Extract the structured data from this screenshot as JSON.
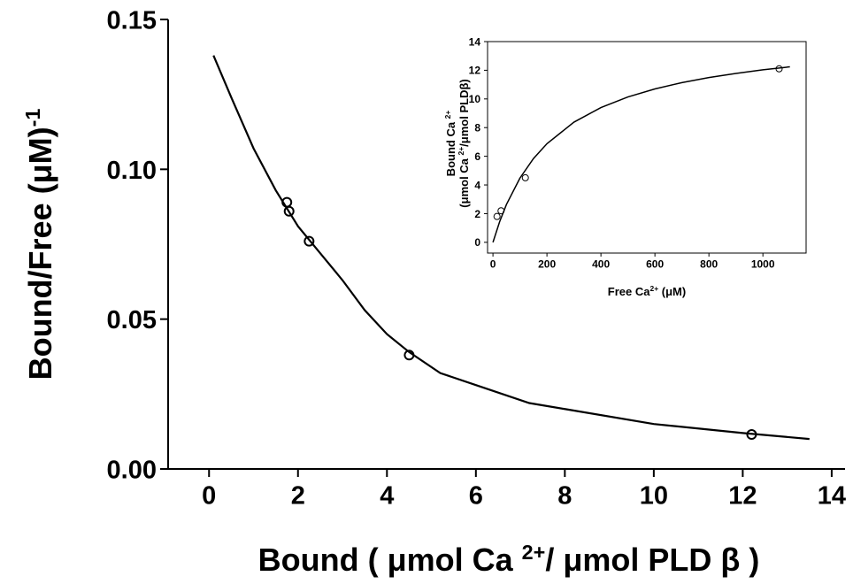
{
  "chart_data": [
    {
      "type": "line",
      "x_label": [
        "Bound ( μmol Ca ",
        "2+",
        "/ μmol PLD β )"
      ],
      "y_label": [
        "Bound/Free (μM)",
        "-1"
      ],
      "xlim": [
        -0.92,
        14.3
      ],
      "ylim": [
        0,
        0.15
      ],
      "xticks": [
        0,
        2,
        4,
        6,
        8,
        10,
        12,
        14
      ],
      "yticks": [
        {
          "value": 0,
          "label": "0.00"
        },
        0.05,
        {
          "value": 0.1,
          "label": "0.10"
        },
        0.15
      ],
      "series": [
        {
          "style": "line",
          "color": "#000000",
          "x": [
            0.1,
            0.5,
            1,
            1.5,
            2,
            2.5,
            3,
            3.5,
            4,
            4.5,
            5.2,
            6,
            7.2,
            8,
            10,
            12,
            13.5
          ],
          "values": [
            0.138,
            0.124,
            0.107,
            0.093,
            0.081,
            0.072,
            0.063,
            0.053,
            0.045,
            0.039,
            0.032,
            0.028,
            0.022,
            0.02,
            0.015,
            0.012,
            0.01
          ]
        },
        {
          "style": "markers",
          "color": "#000000",
          "x": [
            1.75,
            1.8,
            2.25,
            4.5,
            12.2
          ],
          "values": [
            0.089,
            0.086,
            0.076,
            0.038,
            0.0115
          ]
        }
      ]
    },
    {
      "type": "line",
      "x_label": [
        "Free Ca",
        "2+",
        " (μM)"
      ],
      "y_label": [
        "Bound Ca ",
        "2+"
      ],
      "y_label2": [
        "(μmol Ca ",
        "2+",
        "/μmol PLDβ)"
      ],
      "xlim": [
        -20,
        1160
      ],
      "ylim": [
        -0.75,
        14
      ],
      "xticks": [
        0,
        200,
        400,
        600,
        800,
        1000
      ],
      "yticks": [
        0,
        2,
        4,
        6,
        8,
        10,
        12,
        14
      ],
      "series": [
        {
          "style": "line",
          "color": "#000000",
          "x": [
            0,
            25,
            50,
            100,
            150,
            200,
            300,
            400,
            500,
            600,
            700,
            800,
            900,
            1000,
            1100
          ],
          "values": [
            0,
            1.45,
            2.64,
            4.48,
            5.84,
            6.88,
            8.38,
            9.4,
            10.14,
            10.7,
            11.14,
            11.49,
            11.78,
            12.03,
            12.24
          ]
        },
        {
          "style": "markers",
          "color": "#000000",
          "x": [
            15,
            30,
            120,
            1060
          ],
          "values": [
            1.8,
            2.2,
            4.5,
            12.1
          ]
        }
      ]
    }
  ]
}
